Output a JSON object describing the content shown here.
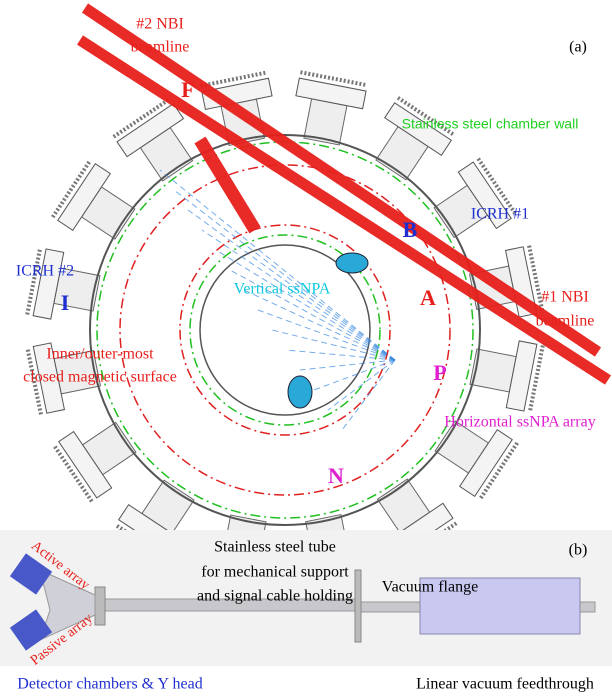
{
  "panel_a": {
    "label": "(a)",
    "nbi2": [
      "#2 NBI",
      "beamline"
    ],
    "nbi1": [
      "#1 NBI",
      "beamline"
    ],
    "chamber_wall": "Stainless steel chamber wall",
    "icrh1": "ICRH #1",
    "port_b": "B",
    "icrh2": "ICRH #2",
    "port_i": "I",
    "port_a": "A",
    "port_f": "F",
    "port_p": "P",
    "port_n": "N",
    "vertical_ssnpa": "Vertical ssNPA",
    "magnetic_surface": [
      "Inner/outer-most",
      "closed magnetic surface"
    ],
    "horizontal_ssnpa": "Horizontal ssNPA array"
  },
  "panel_b": {
    "label": "(b)",
    "tube": [
      "Stainless steel tube",
      "for mechanical support",
      "and signal cable holding"
    ],
    "flange": "Vacuum flange",
    "active": "Active array",
    "passive": "Passive array",
    "detector": "Detector chambers & Y head",
    "feedthrough": "Linear vacuum feedthrough"
  }
}
